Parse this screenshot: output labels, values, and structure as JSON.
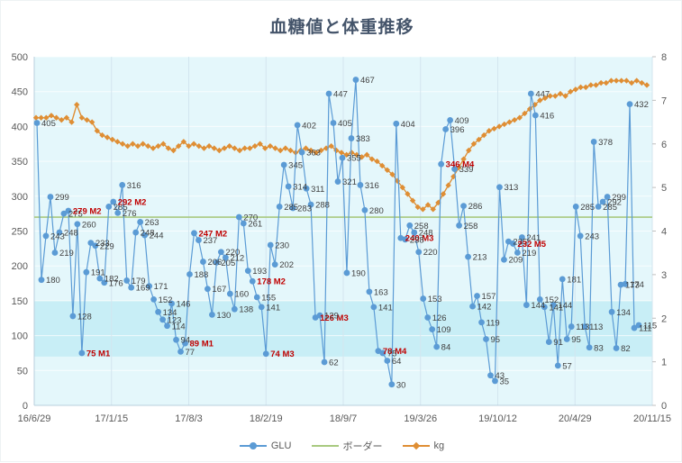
{
  "title": "血糖値と体重推移",
  "colors": {
    "glu_line": "#5b9bd5",
    "border_line": "#a8c97f",
    "kg_line": "#df8e34",
    "label_text": "#3f3f3f",
    "label_red": "#c00000",
    "axis_text": "#595959",
    "title_text": "#44546a",
    "plot_bg": "#e4f7fb",
    "band_bg": "#c8eef6",
    "grid_vertical": "#d3e6ef",
    "grid_horizontal": "#ffffff"
  },
  "legend": [
    {
      "label": "GLU",
      "color": "#5b9bd5",
      "marker": "circle"
    },
    {
      "label": "ボーダー",
      "color": "#a8c97f",
      "marker": "line"
    },
    {
      "label": "kg",
      "color": "#df8e34",
      "marker": "diamond"
    }
  ],
  "chart_data": {
    "type": "line",
    "title": "血糖値と体重推移",
    "x_ticks": [
      "16/6/29",
      "17/1/15",
      "17/8/3",
      "18/2/19",
      "18/9/7",
      "19/3/26",
      "19/10/12",
      "20/4/29",
      "20/11/15"
    ],
    "y_left": {
      "min": 0,
      "max": 500,
      "step": 50
    },
    "y_right": {
      "min": 0,
      "max": 8,
      "step": 1
    },
    "band": {
      "from": 70,
      "to": 150
    },
    "border_value": 270,
    "series": [
      {
        "name": "GLU",
        "axis": "left",
        "color": "#5b9bd5",
        "points": [
          [
            405
          ],
          [
            180
          ],
          [
            243
          ],
          [
            299
          ],
          [
            219
          ],
          [
            248
          ],
          [
            275
          ],
          [
            279,
            "279 M2",
            1
          ],
          [
            128
          ],
          [
            260
          ],
          [
            75,
            "75 M1",
            1
          ],
          [
            191
          ],
          [
            233
          ],
          [
            229
          ],
          [
            182
          ],
          [
            176
          ],
          [
            285
          ],
          [
            292,
            "292 M2",
            1
          ],
          [
            276
          ],
          [
            316
          ],
          [
            179
          ],
          [
            169
          ],
          [
            248
          ],
          [
            263
          ],
          [
            244
          ],
          [
            171
          ],
          [
            152
          ],
          [
            134
          ],
          [
            123
          ],
          [
            114
          ],
          [
            146
          ],
          [
            94
          ],
          [
            77
          ],
          [
            89,
            "89 M1",
            1
          ],
          [
            188
          ],
          [
            247,
            "247 M2",
            1
          ],
          [
            237
          ],
          [
            206
          ],
          [
            167
          ],
          [
            130
          ],
          [
            205
          ],
          [
            220
          ],
          [
            212
          ],
          [
            160
          ],
          [
            138
          ],
          [
            270
          ],
          [
            261
          ],
          [
            193
          ],
          [
            178,
            "178 M2",
            1
          ],
          [
            155
          ],
          [
            141
          ],
          [
            74,
            "74 M3",
            1
          ],
          [
            230
          ],
          [
            202
          ],
          [
            285
          ],
          [
            345
          ],
          [
            314
          ],
          [
            283
          ],
          [
            402
          ],
          [
            363
          ],
          [
            311
          ],
          [
            288
          ],
          [
            126,
            "126 M3",
            1
          ],
          [
            129
          ],
          [
            62
          ],
          [
            447
          ],
          [
            405
          ],
          [
            321
          ],
          [
            355
          ],
          [
            190
          ],
          [
            383
          ],
          [
            467
          ],
          [
            316
          ],
          [
            280
          ],
          [
            163
          ],
          [
            141
          ],
          [
            78,
            "78 M4",
            1
          ],
          [
            75
          ],
          [
            64
          ],
          [
            30
          ],
          [
            404
          ],
          [
            240,
            "240 M3",
            1
          ],
          [
            238
          ],
          [
            258
          ],
          [
            248
          ],
          [
            220
          ],
          [
            153
          ],
          [
            126
          ],
          [
            109
          ],
          [
            84
          ],
          [
            346,
            "346 M4",
            1
          ],
          [
            396
          ],
          [
            409
          ],
          [
            339
          ],
          [
            258
          ],
          [
            286
          ],
          [
            213
          ],
          [
            142
          ],
          [
            157
          ],
          [
            119
          ],
          [
            95
          ],
          [
            43
          ],
          [
            35
          ],
          [
            313
          ],
          [
            209
          ],
          [
            235
          ],
          [
            232,
            "232 M5",
            1
          ],
          [
            219
          ],
          [
            241
          ],
          [
            144
          ],
          [
            447
          ],
          [
            416
          ],
          [
            152
          ],
          [
            141
          ],
          [
            91
          ],
          [
            144
          ],
          [
            57
          ],
          [
            181
          ],
          [
            95
          ],
          [
            113
          ],
          [
            285
          ],
          [
            243
          ],
          [
            113
          ],
          [
            83
          ],
          [
            378
          ],
          [
            285
          ],
          [
            292
          ],
          [
            299
          ],
          [
            134
          ],
          [
            82
          ],
          [
            173
          ],
          [
            174
          ],
          [
            432
          ],
          [
            111
          ],
          [
            115
          ]
        ]
      },
      {
        "name": "ボーダー",
        "axis": "left",
        "color": "#a8c97f",
        "value": 270
      },
      {
        "name": "kg",
        "axis": "right",
        "color": "#df8e34",
        "values": [
          6.6,
          6.6,
          6.6,
          6.65,
          6.6,
          6.55,
          6.6,
          6.5,
          6.9,
          6.6,
          6.55,
          6.5,
          6.3,
          6.2,
          6.15,
          6.1,
          6.05,
          6.0,
          5.95,
          6.0,
          5.95,
          6.0,
          5.95,
          5.9,
          5.95,
          6.0,
          5.9,
          5.85,
          5.95,
          6.05,
          5.95,
          6.0,
          5.95,
          5.9,
          5.95,
          5.9,
          5.85,
          5.9,
          5.95,
          5.9,
          5.85,
          5.9,
          5.9,
          5.95,
          6.0,
          5.9,
          5.95,
          5.9,
          5.85,
          5.9,
          5.85,
          5.8,
          5.85,
          5.9,
          5.85,
          5.8,
          5.85,
          5.9,
          5.95,
          5.85,
          5.8,
          5.75,
          5.8,
          5.75,
          5.7,
          5.75,
          5.65,
          5.6,
          5.5,
          5.4,
          5.3,
          5.15,
          5.0,
          4.85,
          4.7,
          4.55,
          4.5,
          4.6,
          4.5,
          4.65,
          4.85,
          5.05,
          5.25,
          5.45,
          5.65,
          5.85,
          6.0,
          6.1,
          6.2,
          6.3,
          6.35,
          6.4,
          6.45,
          6.5,
          6.55,
          6.6,
          6.7,
          6.8,
          6.9,
          7.0,
          7.05,
          7.1,
          7.1,
          7.15,
          7.1,
          7.2,
          7.25,
          7.3,
          7.3,
          7.35,
          7.35,
          7.4,
          7.4,
          7.45,
          7.45,
          7.45,
          7.45,
          7.4,
          7.45,
          7.4,
          7.35
        ]
      }
    ]
  }
}
